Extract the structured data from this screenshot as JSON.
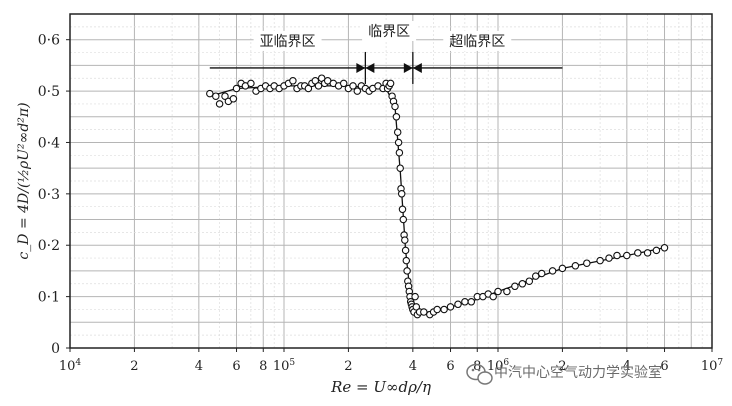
{
  "chart_data": {
    "type": "scatter",
    "x_scale": "log",
    "xlim": [
      10000,
      10000000
    ],
    "ylim": [
      0,
      0.65
    ],
    "xlabel": "Re = U∞dρ/η",
    "ylabel": "c_D = 4D/(½ρU²∞d²π)",
    "grid": true,
    "xticks": [
      {
        "value": 10000,
        "mantissa": "10",
        "exp": "4"
      },
      {
        "value": 20000,
        "mantissa": "2",
        "exp": ""
      },
      {
        "value": 40000,
        "mantissa": "4",
        "exp": ""
      },
      {
        "value": 60000,
        "mantissa": "6",
        "exp": ""
      },
      {
        "value": 80000,
        "mantissa": "8",
        "exp": ""
      },
      {
        "value": 100000,
        "mantissa": "10",
        "exp": "5"
      },
      {
        "value": 200000,
        "mantissa": "2",
        "exp": ""
      },
      {
        "value": 400000,
        "mantissa": "4",
        "exp": ""
      },
      {
        "value": 600000,
        "mantissa": "6",
        "exp": ""
      },
      {
        "value": 800000,
        "mantissa": "8",
        "exp": ""
      },
      {
        "value": 1000000,
        "mantissa": "10",
        "exp": "6"
      },
      {
        "value": 2000000,
        "mantissa": "2",
        "exp": ""
      },
      {
        "value": 4000000,
        "mantissa": "4",
        "exp": ""
      },
      {
        "value": 6000000,
        "mantissa": "6",
        "exp": ""
      },
      {
        "value": 10000000,
        "mantissa": "10",
        "exp": "7"
      }
    ],
    "yticks": [
      {
        "value": 0,
        "label": "0"
      },
      {
        "value": 0.1,
        "label": "0·1"
      },
      {
        "value": 0.2,
        "label": "0·2"
      },
      {
        "value": 0.3,
        "label": "0·3"
      },
      {
        "value": 0.4,
        "label": "0·4"
      },
      {
        "value": 0.5,
        "label": "0·5"
      },
      {
        "value": 0.6,
        "label": "0·6"
      }
    ],
    "regions": [
      {
        "label": "亚临界区",
        "x_start": 45000,
        "x_end": 240000
      },
      {
        "label": "临界区",
        "x_start": 240000,
        "x_end": 400000
      },
      {
        "label": "超临界区",
        "x_start": 400000,
        "x_end": 2000000
      }
    ],
    "region_arrow_y": 0.545,
    "series": [
      {
        "points": [
          [
            45000,
            0.495
          ],
          [
            48000,
            0.49
          ],
          [
            50000,
            0.475
          ],
          [
            53000,
            0.49
          ],
          [
            55000,
            0.48
          ],
          [
            58000,
            0.485
          ],
          [
            60000,
            0.505
          ],
          [
            63000,
            0.515
          ],
          [
            66000,
            0.51
          ],
          [
            70000,
            0.515
          ],
          [
            74000,
            0.5
          ],
          [
            78000,
            0.505
          ],
          [
            82000,
            0.51
          ],
          [
            86000,
            0.505
          ],
          [
            90000,
            0.51
          ],
          [
            95000,
            0.505
          ],
          [
            100000,
            0.51
          ],
          [
            105000,
            0.515
          ],
          [
            110000,
            0.52
          ],
          [
            115000,
            0.505
          ],
          [
            120000,
            0.51
          ],
          [
            125000,
            0.51
          ],
          [
            130000,
            0.505
          ],
          [
            135000,
            0.515
          ],
          [
            140000,
            0.52
          ],
          [
            145000,
            0.51
          ],
          [
            150000,
            0.525
          ],
          [
            155000,
            0.515
          ],
          [
            160000,
            0.52
          ],
          [
            170000,
            0.515
          ],
          [
            180000,
            0.51
          ],
          [
            190000,
            0.515
          ],
          [
            200000,
            0.505
          ],
          [
            210000,
            0.51
          ],
          [
            220000,
            0.5
          ],
          [
            230000,
            0.51
          ],
          [
            240000,
            0.505
          ],
          [
            250000,
            0.5
          ],
          [
            260000,
            0.505
          ],
          [
            275000,
            0.51
          ],
          [
            290000,
            0.505
          ],
          [
            300000,
            0.515
          ],
          [
            305000,
            0.505
          ],
          [
            310000,
            0.51
          ],
          [
            315000,
            0.515
          ],
          [
            320000,
            0.49
          ],
          [
            325000,
            0.48
          ],
          [
            330000,
            0.47
          ],
          [
            335000,
            0.45
          ],
          [
            340000,
            0.42
          ],
          [
            343000,
            0.4
          ],
          [
            346000,
            0.38
          ],
          [
            349000,
            0.35
          ],
          [
            352000,
            0.31
          ],
          [
            355000,
            0.3
          ],
          [
            358000,
            0.27
          ],
          [
            361000,
            0.25
          ],
          [
            364000,
            0.22
          ],
          [
            367000,
            0.21
          ],
          [
            370000,
            0.19
          ],
          [
            373000,
            0.17
          ],
          [
            376000,
            0.15
          ],
          [
            379000,
            0.13
          ],
          [
            382000,
            0.12
          ],
          [
            385000,
            0.11
          ],
          [
            388000,
            0.1
          ],
          [
            391000,
            0.09
          ],
          [
            394000,
            0.085
          ],
          [
            397000,
            0.08
          ],
          [
            400000,
            0.075
          ],
          [
            405000,
            0.07
          ],
          [
            410000,
            0.1
          ],
          [
            415000,
            0.08
          ],
          [
            420000,
            0.065
          ],
          [
            430000,
            0.07
          ],
          [
            450000,
            0.07
          ],
          [
            480000,
            0.065
          ],
          [
            500000,
            0.07
          ],
          [
            520000,
            0.075
          ],
          [
            560000,
            0.075
          ],
          [
            600000,
            0.08
          ],
          [
            650000,
            0.085
          ],
          [
            700000,
            0.09
          ],
          [
            750000,
            0.09
          ],
          [
            800000,
            0.1
          ],
          [
            850000,
            0.1
          ],
          [
            900000,
            0.105
          ],
          [
            950000,
            0.1
          ],
          [
            1000000,
            0.11
          ],
          [
            1100000,
            0.11
          ],
          [
            1200000,
            0.12
          ],
          [
            1300000,
            0.125
          ],
          [
            1400000,
            0.13
          ],
          [
            1500000,
            0.14
          ],
          [
            1600000,
            0.145
          ],
          [
            1800000,
            0.15
          ],
          [
            2000000,
            0.155
          ],
          [
            2300000,
            0.16
          ],
          [
            2600000,
            0.165
          ],
          [
            3000000,
            0.17
          ],
          [
            3300000,
            0.175
          ],
          [
            3600000,
            0.18
          ],
          [
            4000000,
            0.18
          ],
          [
            4500000,
            0.185
          ],
          [
            5000000,
            0.185
          ],
          [
            5500000,
            0.19
          ],
          [
            6000000,
            0.195
          ]
        ]
      }
    ],
    "trend_line": [
      [
        45000,
        0.49
      ],
      [
        60000,
        0.505
      ],
      [
        100000,
        0.51
      ],
      [
        200000,
        0.51
      ],
      [
        300000,
        0.505
      ],
      [
        330000,
        0.47
      ],
      [
        350000,
        0.34
      ],
      [
        370000,
        0.19
      ],
      [
        390000,
        0.1
      ],
      [
        420000,
        0.07
      ],
      [
        500000,
        0.07
      ],
      [
        800000,
        0.095
      ],
      [
        1000000,
        0.11
      ],
      [
        2000000,
        0.155
      ],
      [
        4000000,
        0.18
      ],
      [
        6000000,
        0.195
      ]
    ]
  },
  "watermark": {
    "text": "中汽中心空气动力学实验室",
    "icon": "wechat-icon"
  }
}
